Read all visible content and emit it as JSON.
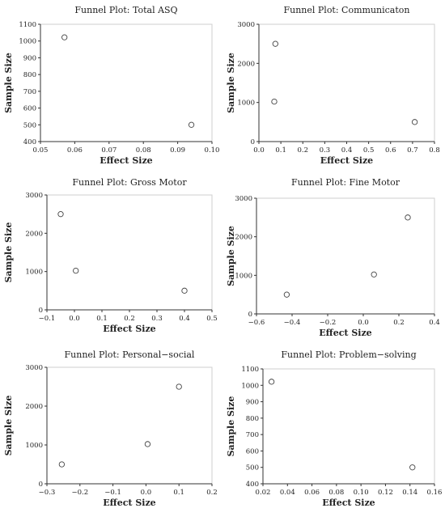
{
  "chart_data": [
    {
      "type": "scatter",
      "title": "Funnel Plot: Total ASQ",
      "xlabel": "Effect Size",
      "ylabel": "Sample Size",
      "xlim": [
        0.05,
        0.1
      ],
      "ylim": [
        400,
        1100
      ],
      "xticks": [
        "0.05",
        "0.06",
        "0.07",
        "0.08",
        "0.09",
        "0.10"
      ],
      "yticks": [
        "400",
        "500",
        "600",
        "700",
        "800",
        "900",
        "1000",
        "1100"
      ],
      "points": [
        {
          "x": 0.057,
          "y": 1022
        },
        {
          "x": 0.094,
          "y": 500
        }
      ]
    },
    {
      "type": "scatter",
      "title": "Funnel Plot: Communicaton",
      "xlabel": "Effect Size",
      "ylabel": "Sample Size",
      "xlim": [
        0.0,
        0.8
      ],
      "ylim": [
        0,
        3000
      ],
      "xticks": [
        "0.0",
        "0.1",
        "0.2",
        "0.3",
        "0.4",
        "0.5",
        "0.6",
        "0.7",
        "0.8"
      ],
      "yticks": [
        "0",
        "1000",
        "2000",
        "3000"
      ],
      "points": [
        {
          "x": 0.075,
          "y": 2500
        },
        {
          "x": 0.07,
          "y": 1022
        },
        {
          "x": 0.71,
          "y": 500
        }
      ]
    },
    {
      "type": "scatter",
      "title": "Funnel Plot: Gross Motor",
      "xlabel": "Effect Size",
      "ylabel": "Sample Size",
      "xlim": [
        -0.1,
        0.5
      ],
      "ylim": [
        0,
        3000
      ],
      "xticks": [
        "−0.1",
        "0.0",
        "0.1",
        "0.2",
        "0.3",
        "0.4",
        "0.5"
      ],
      "yticks": [
        "0",
        "1000",
        "2000",
        "3000"
      ],
      "points": [
        {
          "x": -0.05,
          "y": 2500
        },
        {
          "x": 0.005,
          "y": 1022
        },
        {
          "x": 0.4,
          "y": 500
        }
      ]
    },
    {
      "type": "scatter",
      "title": "Funnel Plot: Fine Motor",
      "xlabel": "Effect Size",
      "ylabel": "Sample Size",
      "xlim": [
        -0.6,
        0.4
      ],
      "ylim": [
        0,
        3000
      ],
      "xticks": [
        "−0.6",
        "−0.4",
        "−0.2",
        "0.0",
        "0.2",
        "0.4"
      ],
      "yticks": [
        "0",
        "1000",
        "2000",
        "3000"
      ],
      "points": [
        {
          "x": 0.25,
          "y": 2500
        },
        {
          "x": 0.06,
          "y": 1022
        },
        {
          "x": -0.43,
          "y": 500
        }
      ]
    },
    {
      "type": "scatter",
      "title": "Funnel Plot: Personal−social",
      "xlabel": "Effect Size",
      "ylabel": "Sample Size",
      "xlim": [
        -0.3,
        0.2
      ],
      "ylim": [
        0,
        3000
      ],
      "xticks": [
        "−0.3",
        "−0.2",
        "−0.1",
        "0.0",
        "0.1",
        "0.2"
      ],
      "yticks": [
        "0",
        "1000",
        "2000",
        "3000"
      ],
      "points": [
        {
          "x": 0.1,
          "y": 2500
        },
        {
          "x": 0.005,
          "y": 1022
        },
        {
          "x": -0.255,
          "y": 500
        }
      ]
    },
    {
      "type": "scatter",
      "title": "Funnel Plot: Problem−solving",
      "xlabel": "Effect Size",
      "ylabel": "Sample Size",
      "xlim": [
        0.02,
        0.16
      ],
      "ylim": [
        400,
        1100
      ],
      "xticks": [
        "0.02",
        "0.04",
        "0.06",
        "0.08",
        "0.10",
        "0.12",
        "0.14",
        "0.16"
      ],
      "yticks": [
        "400",
        "500",
        "600",
        "700",
        "800",
        "900",
        "1000",
        "1100"
      ],
      "points": [
        {
          "x": 0.027,
          "y": 1022
        },
        {
          "x": 0.142,
          "y": 500
        }
      ]
    }
  ]
}
